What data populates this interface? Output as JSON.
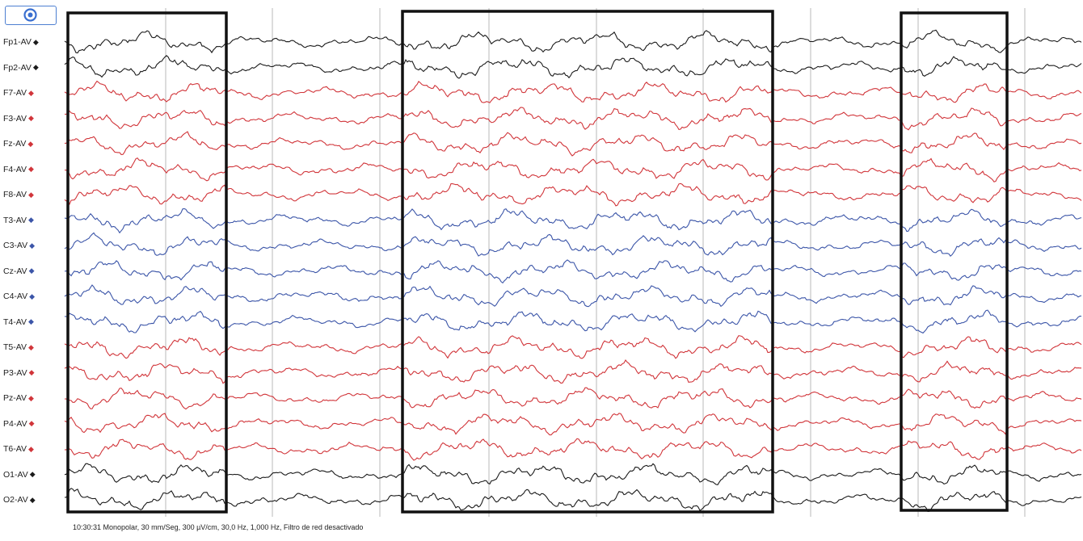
{
  "app": {
    "status_line": "10:30:31 Monopolar, 30 mm/Seg, 300 µV/cm, 30,0 Hz, 1,000 Hz, Filtro de red desactivado"
  },
  "toolbar": {
    "logo_icon": "target-circle-icon"
  },
  "colors": {
    "frontal_trace": "#d1353a",
    "temporal_central_trace": "#3b55a8",
    "polar_occipital_trace": "#1b1b1b",
    "time_grid": "#b9b9b9",
    "highlight_box": "#111111"
  },
  "channels": [
    {
      "label": "Fp1-AV",
      "color": "#1b1b1b"
    },
    {
      "label": "Fp2-AV",
      "color": "#1b1b1b"
    },
    {
      "label": "F7-AV",
      "color": "#d1353a"
    },
    {
      "label": "F3-AV",
      "color": "#d1353a"
    },
    {
      "label": "Fz-AV",
      "color": "#d1353a"
    },
    {
      "label": "F4-AV",
      "color": "#d1353a"
    },
    {
      "label": "F8-AV",
      "color": "#d1353a"
    },
    {
      "label": "T3-AV",
      "color": "#3b55a8"
    },
    {
      "label": "C3-AV",
      "color": "#3b55a8"
    },
    {
      "label": "Cz-AV",
      "color": "#3b55a8"
    },
    {
      "label": "C4-AV",
      "color": "#3b55a8"
    },
    {
      "label": "T4-AV",
      "color": "#3b55a8"
    },
    {
      "label": "T5-AV",
      "color": "#d1353a"
    },
    {
      "label": "P3-AV",
      "color": "#d1353a"
    },
    {
      "label": "Pz-AV",
      "color": "#d1353a"
    },
    {
      "label": "P4-AV",
      "color": "#d1353a"
    },
    {
      "label": "T6-AV",
      "color": "#d1353a"
    },
    {
      "label": "O1-AV",
      "color": "#1b1b1b"
    },
    {
      "label": "O2-AV",
      "color": "#1b1b1b"
    }
  ]
}
